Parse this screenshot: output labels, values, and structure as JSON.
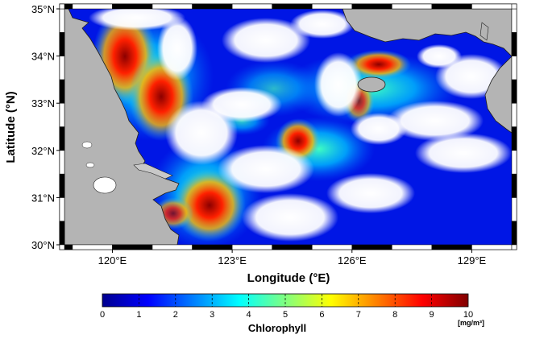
{
  "map": {
    "x_axis": {
      "title": "Longitude (°E)",
      "ticks": [
        {
          "value": 120,
          "label": "120°E"
        },
        {
          "value": 123,
          "label": "123°E"
        },
        {
          "value": 126,
          "label": "126°E"
        },
        {
          "value": 129,
          "label": "129°E"
        }
      ],
      "range": [
        118.8,
        130.0
      ]
    },
    "y_axis": {
      "title": "Latitude (°N)",
      "ticks": [
        {
          "value": 30,
          "label": "30°N"
        },
        {
          "value": 31,
          "label": "31°N"
        },
        {
          "value": 32,
          "label": "32°N"
        },
        {
          "value": 33,
          "label": "33°N"
        },
        {
          "value": 34,
          "label": "34°N"
        },
        {
          "value": 35,
          "label": "35°N"
        }
      ],
      "range": [
        30,
        35
      ]
    },
    "colors": {
      "land": "#b4b4b4",
      "cloud_nodata": "#ffffff",
      "frame": "#000000"
    }
  },
  "colorbar": {
    "title": "Chlorophyll",
    "unit": "[mg/m³]",
    "min": 0,
    "max": 10,
    "ticks": [
      "0",
      "1",
      "2",
      "3",
      "4",
      "5",
      "6",
      "7",
      "8",
      "9",
      "10"
    ],
    "colormap": "jet",
    "stops": [
      "#00008f",
      "#0000ff",
      "#0080ff",
      "#00ffff",
      "#80ff80",
      "#ffff00",
      "#ff8000",
      "#ff0000",
      "#800000"
    ]
  }
}
